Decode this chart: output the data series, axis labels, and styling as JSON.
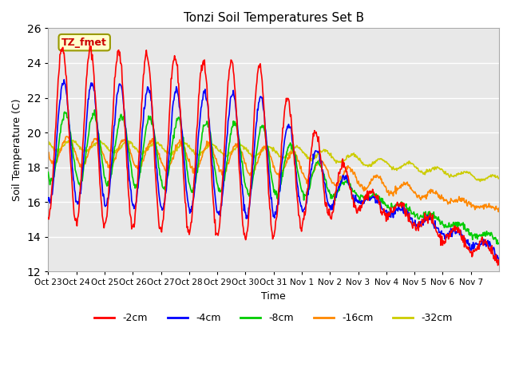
{
  "title": "Tonzi Soil Temperatures Set B",
  "xlabel": "Time",
  "ylabel": "Soil Temperature (C)",
  "ylim": [
    12,
    26
  ],
  "annotation": "TZ_fmet",
  "legend_labels": [
    "-2cm",
    "-4cm",
    "-8cm",
    "-16cm",
    "-32cm"
  ],
  "line_colors": [
    "#ff0000",
    "#0000ff",
    "#00cc00",
    "#ff8800",
    "#cccc00"
  ],
  "bg_color": "#e8e8e8",
  "tick_labels": [
    "Oct 23",
    "Oct 24",
    "Oct 25",
    "Oct 26",
    "Oct 27",
    "Oct 28",
    "Oct 29",
    "Oct 30",
    "Oct 31",
    "Nov 1",
    "Nov 2",
    "Nov 3",
    "Nov 4",
    "Nov 5",
    "Nov 6",
    "Nov 7"
  ],
  "yticks": [
    12,
    14,
    16,
    18,
    20,
    22,
    24,
    26
  ],
  "n_days": 16,
  "n_per_day": 48
}
